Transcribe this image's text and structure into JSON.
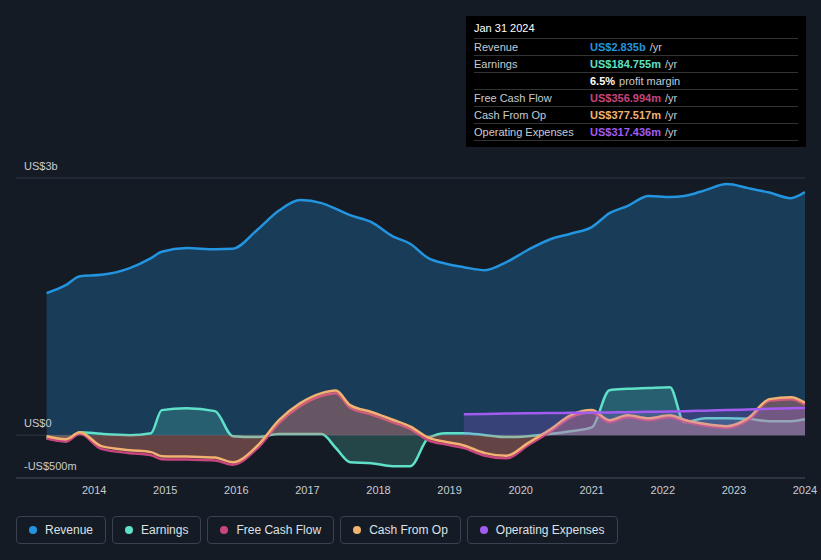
{
  "chart_data": {
    "type": "area",
    "x": [
      2013.33,
      2013.6,
      2013.8,
      2014.1,
      2014.5,
      2014.8,
      2014.95,
      2015.3,
      2015.7,
      2015.95,
      2016.3,
      2016.6,
      2016.9,
      2017.2,
      2017.4,
      2017.6,
      2017.9,
      2018.2,
      2018.45,
      2018.7,
      2018.95,
      2019.2,
      2019.5,
      2019.8,
      2020.1,
      2020.4,
      2020.7,
      2021.0,
      2021.25,
      2021.5,
      2021.8,
      2022.1,
      2022.3,
      2022.6,
      2022.9,
      2023.2,
      2023.5,
      2023.8,
      2024.0
    ],
    "xlim": [
      2012.9,
      2024.0
    ],
    "xticks": [
      2014,
      2015,
      2016,
      2017,
      2018,
      2019,
      2020,
      2021,
      2022,
      2023,
      2024
    ],
    "ylim": [
      -500,
      3000
    ],
    "yticks": [
      {
        "value": 3000,
        "label": "US$3b"
      },
      {
        "value": 0,
        "label": "US$0"
      },
      {
        "value": -500,
        "label": "-US$500m"
      }
    ],
    "grid": true,
    "legend": "bottom",
    "series": [
      {
        "name": "Revenue",
        "color": "#2394df",
        "values": [
          1657,
          1750,
          1855,
          1870,
          1949,
          2065,
          2140,
          2182,
          2170,
          2175,
          2400,
          2620,
          2742,
          2707,
          2640,
          2567,
          2485,
          2320,
          2230,
          2065,
          2000,
          1960,
          1925,
          2019,
          2160,
          2280,
          2350,
          2427,
          2590,
          2672,
          2790,
          2777,
          2789,
          2859,
          2929,
          2882,
          2830,
          2765,
          2835
        ]
      },
      {
        "name": "Earnings",
        "color": "#5fe0c8",
        "values": [
          -35,
          -70,
          35,
          15,
          0,
          23,
          292,
          315,
          280,
          -12,
          -23,
          12,
          12,
          12,
          -150,
          -315,
          -327,
          -362,
          -362,
          -35,
          23,
          23,
          0,
          -23,
          -12,
          12,
          45,
          90,
          525,
          540,
          550,
          560,
          152,
          198,
          198,
          190,
          163,
          163,
          185
        ]
      },
      {
        "name": "Free Cash Flow",
        "color": "#c8457e",
        "values": [
          -40,
          -75,
          15,
          -160,
          -210,
          -235,
          -280,
          -285,
          -295,
          -345,
          -150,
          140,
          340,
          460,
          490,
          320,
          240,
          150,
          70,
          -60,
          -110,
          -150,
          -240,
          -270,
          -120,
          30,
          205,
          265,
          150,
          210,
          175,
          210,
          160,
          110,
          85,
          175,
          400,
          420,
          357
        ]
      },
      {
        "name": "Cash From Op",
        "color": "#f2b272",
        "values": [
          -12,
          -47,
          35,
          -128,
          -175,
          -198,
          -245,
          -250,
          -262,
          -315,
          -120,
          175,
          373,
          490,
          520,
          350,
          270,
          180,
          100,
          -30,
          -80,
          -120,
          -210,
          -240,
          -93,
          58,
          230,
          292,
          175,
          233,
          198,
          233,
          180,
          130,
          105,
          198,
          420,
          443,
          378
        ]
      },
      {
        "name": "Operating Expenses",
        "color": "#a35cf0",
        "values": [
          null,
          null,
          null,
          null,
          null,
          null,
          null,
          null,
          null,
          null,
          null,
          null,
          null,
          null,
          null,
          null,
          null,
          null,
          null,
          null,
          null,
          245,
          248,
          252,
          255,
          258,
          260,
          262,
          265,
          268,
          272,
          276,
          280,
          286,
          292,
          300,
          308,
          314,
          317
        ]
      }
    ],
    "info_box": {
      "date": "Jan 31 2024",
      "rows": [
        {
          "label": "Revenue",
          "value": "US$2.835b",
          "unit": "/yr"
        },
        {
          "label": "Earnings",
          "value": "US$184.755m",
          "unit": "/yr"
        },
        {
          "value": "6.5%",
          "label": "profit margin"
        },
        {
          "label": "Free Cash Flow",
          "value": "US$356.994m",
          "unit": "/yr"
        },
        {
          "label": "Cash From Op",
          "value": "US$377.517m",
          "unit": "/yr"
        },
        {
          "label": "Operating Expenses",
          "value": "US$317.436m",
          "unit": "/yr"
        }
      ]
    }
  }
}
